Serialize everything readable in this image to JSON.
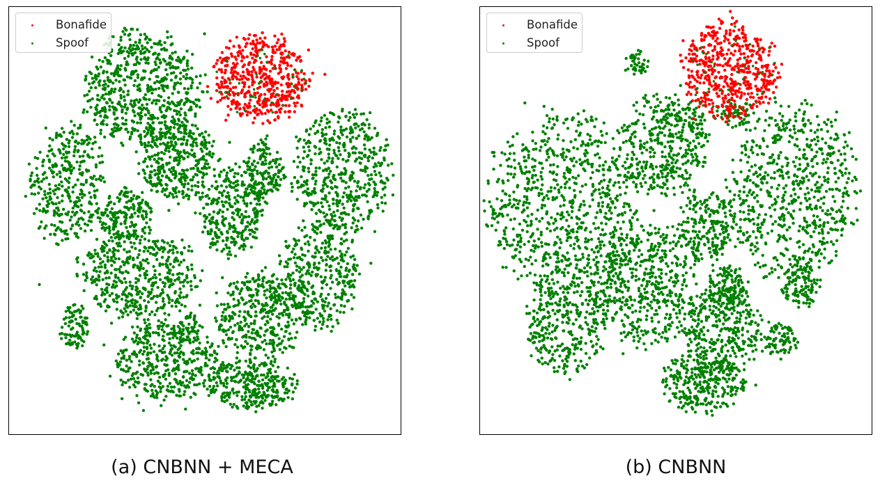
{
  "chart_data": [
    {
      "type": "scatter",
      "caption": "(a) CNBNN + MECA",
      "legend": {
        "placement": "top-left",
        "entries": [
          {
            "name": "Bonafide",
            "color": "#ff0000"
          },
          {
            "name": "Spoof",
            "color": "#008000"
          }
        ]
      },
      "axes_visible": false,
      "grid": false,
      "series": [
        {
          "name": "Bonafide",
          "color": "#ff0000",
          "clusters": [
            {
              "cx": 0.64,
              "cy": 0.17,
              "rx": 0.12,
              "ry": 0.1,
              "n": 520
            }
          ]
        },
        {
          "name": "Spoof",
          "color": "#008000",
          "clusters": [
            {
              "cx": 0.34,
              "cy": 0.19,
              "rx": 0.15,
              "ry": 0.13,
              "n": 650
            },
            {
              "cx": 0.43,
              "cy": 0.36,
              "rx": 0.1,
              "ry": 0.09,
              "n": 380
            },
            {
              "cx": 0.15,
              "cy": 0.41,
              "rx": 0.09,
              "ry": 0.14,
              "n": 360
            },
            {
              "cx": 0.3,
              "cy": 0.49,
              "rx": 0.07,
              "ry": 0.06,
              "n": 180
            },
            {
              "cx": 0.65,
              "cy": 0.38,
              "rx": 0.05,
              "ry": 0.07,
              "n": 170
            },
            {
              "cx": 0.85,
              "cy": 0.39,
              "rx": 0.12,
              "ry": 0.15,
              "n": 520
            },
            {
              "cx": 0.57,
              "cy": 0.48,
              "rx": 0.08,
              "ry": 0.1,
              "n": 300
            },
            {
              "cx": 0.33,
              "cy": 0.63,
              "rx": 0.15,
              "ry": 0.1,
              "n": 480
            },
            {
              "cx": 0.79,
              "cy": 0.63,
              "rx": 0.1,
              "ry": 0.12,
              "n": 370
            },
            {
              "cx": 0.64,
              "cy": 0.72,
              "rx": 0.11,
              "ry": 0.1,
              "n": 380
            },
            {
              "cx": 0.17,
              "cy": 0.75,
              "rx": 0.04,
              "ry": 0.05,
              "n": 90
            },
            {
              "cx": 0.4,
              "cy": 0.83,
              "rx": 0.13,
              "ry": 0.09,
              "n": 420
            },
            {
              "cx": 0.62,
              "cy": 0.88,
              "rx": 0.11,
              "ry": 0.06,
              "n": 320
            },
            {
              "cx": 0.46,
              "cy": 0.75,
              "rx": 0.03,
              "ry": 0.03,
              "n": 40
            }
          ]
        }
      ]
    },
    {
      "type": "scatter",
      "caption": "(b) CNBNN",
      "legend": {
        "placement": "top-left",
        "entries": [
          {
            "name": "Bonafide",
            "color": "#ff0000"
          },
          {
            "name": "Spoof",
            "color": "#008000"
          }
        ]
      },
      "axes_visible": false,
      "grid": false,
      "series": [
        {
          "name": "Bonafide",
          "color": "#ff0000",
          "clusters": [
            {
              "cx": 0.64,
              "cy": 0.15,
              "rx": 0.12,
              "ry": 0.11,
              "n": 520
            }
          ]
        },
        {
          "name": "Spoof",
          "color": "#008000",
          "clusters": [
            {
              "cx": 0.4,
              "cy": 0.13,
              "rx": 0.03,
              "ry": 0.03,
              "n": 45
            },
            {
              "cx": 0.47,
              "cy": 0.32,
              "rx": 0.11,
              "ry": 0.12,
              "n": 420
            },
            {
              "cx": 0.21,
              "cy": 0.46,
              "rx": 0.19,
              "ry": 0.2,
              "n": 800
            },
            {
              "cx": 0.8,
              "cy": 0.43,
              "rx": 0.16,
              "ry": 0.2,
              "n": 700
            },
            {
              "cx": 0.58,
              "cy": 0.51,
              "rx": 0.07,
              "ry": 0.08,
              "n": 220
            },
            {
              "cx": 0.42,
              "cy": 0.65,
              "rx": 0.13,
              "ry": 0.14,
              "n": 520
            },
            {
              "cx": 0.22,
              "cy": 0.74,
              "rx": 0.1,
              "ry": 0.11,
              "n": 330
            },
            {
              "cx": 0.63,
              "cy": 0.66,
              "rx": 0.05,
              "ry": 0.06,
              "n": 130
            },
            {
              "cx": 0.82,
              "cy": 0.65,
              "rx": 0.05,
              "ry": 0.05,
              "n": 110
            },
            {
              "cx": 0.62,
              "cy": 0.76,
              "rx": 0.1,
              "ry": 0.1,
              "n": 330
            },
            {
              "cx": 0.57,
              "cy": 0.88,
              "rx": 0.1,
              "ry": 0.07,
              "n": 300
            },
            {
              "cx": 0.77,
              "cy": 0.78,
              "rx": 0.04,
              "ry": 0.04,
              "n": 80
            },
            {
              "cx": 0.65,
              "cy": 0.25,
              "rx": 0.05,
              "ry": 0.03,
              "n": 60
            }
          ]
        }
      ]
    }
  ]
}
